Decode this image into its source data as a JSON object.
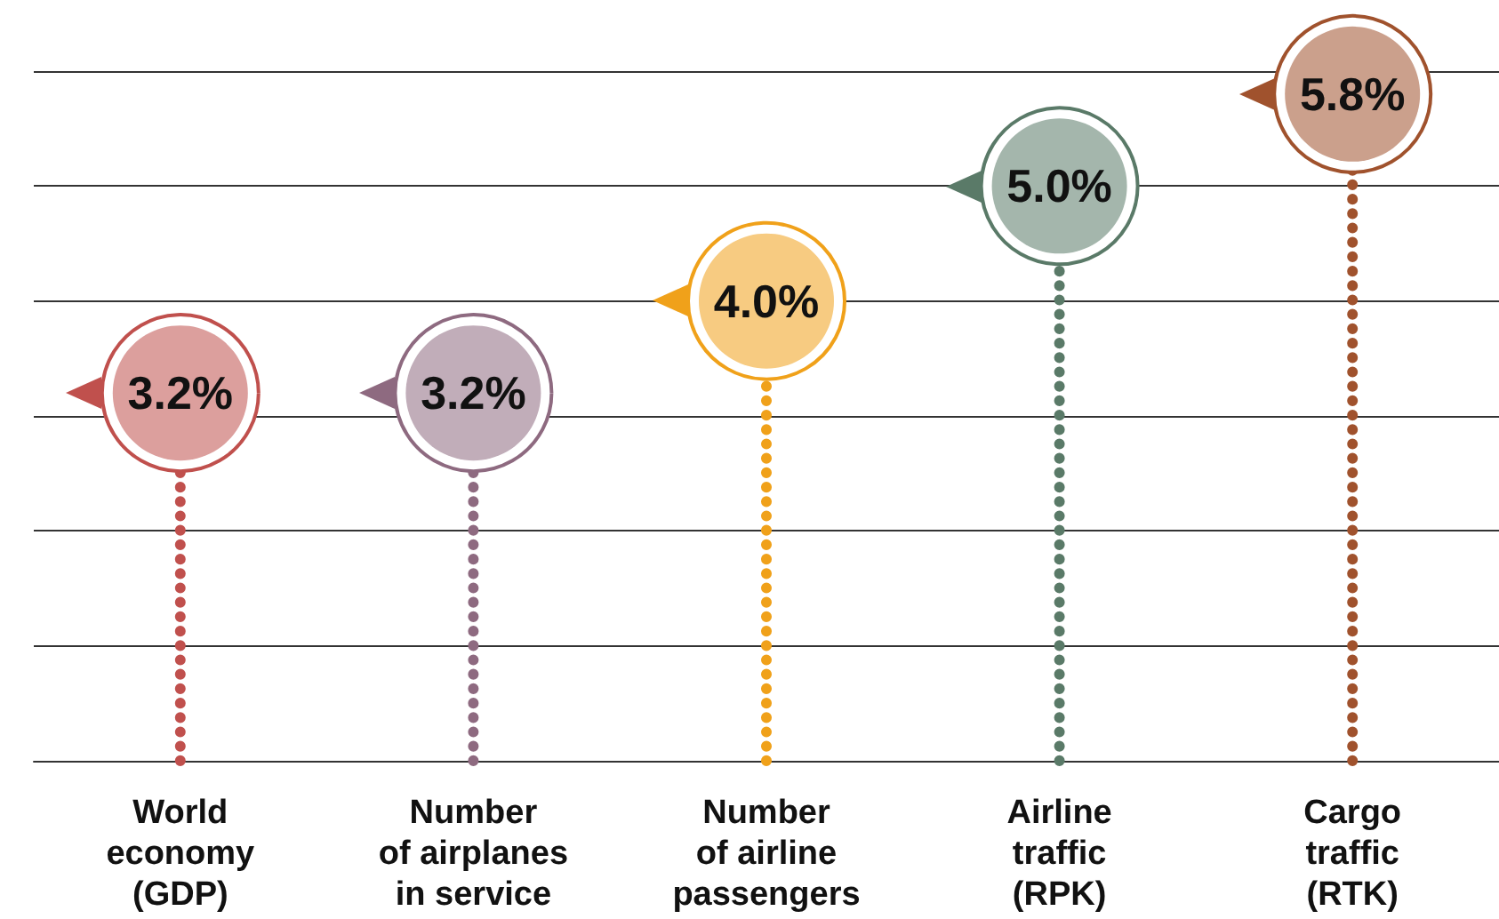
{
  "chart_data": {
    "type": "lollipop",
    "categories": [
      "World\neconomy\n(GDP)",
      "Number\nof airplanes\nin service",
      "Number\nof airline\npassengers",
      "Airline\ntraffic\n(RPK)",
      "Cargo\ntraffic\n(RTK)"
    ],
    "values": [
      3.2,
      3.2,
      4.0,
      5.0,
      5.8
    ],
    "value_labels": [
      "3.2%",
      "3.2%",
      "4.0%",
      "5.0%",
      "5.8%"
    ],
    "colors": [
      "#c0504d",
      "#8e6a80",
      "#f0a11a",
      "#5a7a68",
      "#a0522d"
    ],
    "ylim": [
      0,
      6
    ],
    "yticks": [
      {
        "value": 0,
        "label": null
      },
      {
        "value": 1,
        "label": null
      },
      {
        "value": 2,
        "label": null
      },
      {
        "value": 3,
        "label": null
      },
      {
        "value": 4,
        "label": null
      },
      {
        "value": 5,
        "label": null
      },
      {
        "value": 6,
        "label": null
      }
    ],
    "tick_labels": "x",
    "grid": "y",
    "line_style": "dotted"
  }
}
